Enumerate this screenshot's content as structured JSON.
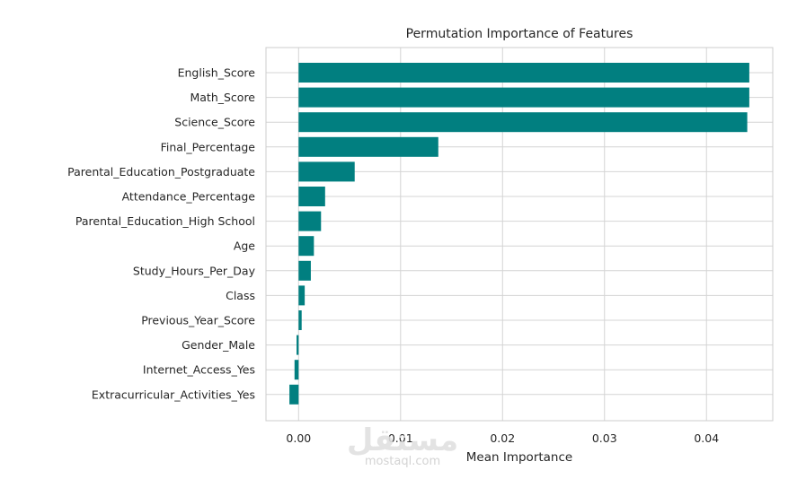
{
  "chart_data": {
    "type": "bar",
    "orientation": "horizontal",
    "title": "Permutation Importance of Features",
    "xlabel": "Mean Importance",
    "ylabel": "",
    "xlim": [
      -0.0032,
      0.0465
    ],
    "xticks": [
      0.0,
      0.01,
      0.02,
      0.03,
      0.04
    ],
    "xtick_labels": [
      "0.00",
      "0.01",
      "0.02",
      "0.03",
      "0.04"
    ],
    "grid": true,
    "bar_color": "#017f80",
    "categories": [
      "English_Score",
      "Math_Score",
      "Science_Score",
      "Final_Percentage",
      "Parental_Education_Postgraduate",
      "Attendance_Percentage",
      "Parental_Education_High School",
      "Age",
      "Study_Hours_Per_Day",
      "Class",
      "Previous_Year_Score",
      "Gender_Male",
      "Internet_Access_Yes",
      "Extracurricular_Activities_Yes"
    ],
    "values": [
      0.0442,
      0.0442,
      0.044,
      0.0137,
      0.0055,
      0.0026,
      0.0022,
      0.0015,
      0.0012,
      0.0006,
      0.0003,
      -0.0002,
      -0.0004,
      -0.0009
    ]
  },
  "watermark": {
    "logo": "مستقل",
    "text": "mostaql.com"
  }
}
